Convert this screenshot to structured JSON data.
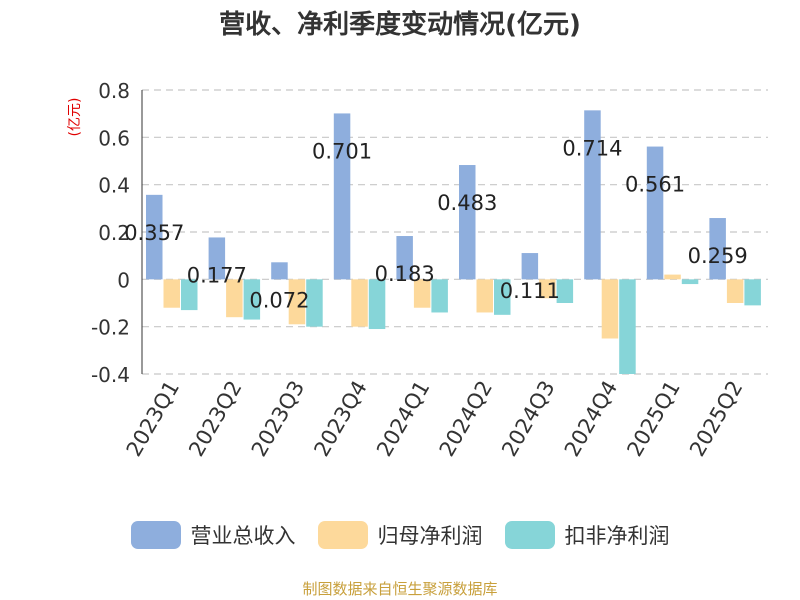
{
  "chart_data": {
    "type": "bar",
    "title": "营收、净利季度变动情况(亿元)",
    "ylabel": "(亿元)",
    "ylim": [
      -0.4,
      0.8
    ],
    "yticks": [
      -0.4,
      -0.2,
      0,
      0.2,
      0.4,
      0.6,
      0.8
    ],
    "ytick_labels": [
      "-0.4",
      "-0.2",
      "0",
      "0.2",
      "0.4",
      "0.6",
      "0.8"
    ],
    "grid": true,
    "legend_position": "bottom",
    "categories": [
      "2023Q1",
      "2023Q2",
      "2023Q3",
      "2023Q4",
      "2024Q1",
      "2024Q2",
      "2024Q3",
      "2024Q4",
      "2025Q1",
      "2025Q2"
    ],
    "series": [
      {
        "name": "营业总收入",
        "color": "#8eaedd",
        "values": [
          0.357,
          0.177,
          0.072,
          0.701,
          0.183,
          0.483,
          0.111,
          0.714,
          0.561,
          0.259
        ],
        "labels": [
          "0.357",
          "0.177",
          "0.072",
          "0.701",
          "0.183",
          "0.483",
          "0.111",
          "0.714",
          "0.561",
          "0.259"
        ]
      },
      {
        "name": "归母净利润",
        "color": "#fdd99b",
        "values": [
          -0.12,
          -0.16,
          -0.19,
          -0.2,
          -0.12,
          -0.14,
          -0.08,
          -0.25,
          0.02,
          -0.1
        ]
      },
      {
        "name": "扣非净利润",
        "color": "#86d5d8",
        "values": [
          -0.13,
          -0.17,
          -0.2,
          -0.21,
          -0.14,
          -0.15,
          -0.1,
          -0.4,
          -0.02,
          -0.11
        ]
      }
    ]
  },
  "source": "制图数据来自恒生聚源数据库"
}
